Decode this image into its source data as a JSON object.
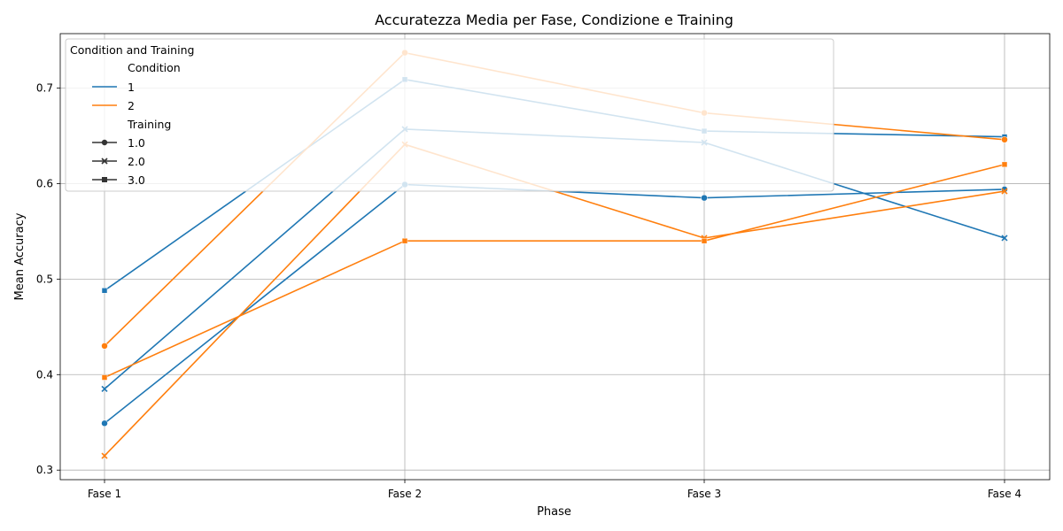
{
  "chart_data": {
    "type": "line",
    "title": "Accuratezza Media per Fase, Condizione e Training",
    "xlabel": "Phase",
    "ylabel": "Mean Accuracy",
    "categories": [
      "Fase 1",
      "Fase 2",
      "Fase 3",
      "Fase 4"
    ],
    "ylim": [
      0.29,
      0.757
    ],
    "yticks": [
      "0.3",
      "0.4",
      "0.5",
      "0.6",
      "0.7"
    ],
    "grid": true,
    "legend": {
      "placement": "top-left",
      "title": "Condition and Training",
      "condition_header": "Condition",
      "conditions": [
        {
          "label": "1",
          "color": "#1f77b4"
        },
        {
          "label": "2",
          "color": "#ff7f0e"
        }
      ],
      "training_header": "Training",
      "trainings": [
        {
          "label": "1.0",
          "marker": "circle"
        },
        {
          "label": "2.0",
          "marker": "x"
        },
        {
          "label": "3.0",
          "marker": "square"
        }
      ]
    },
    "series": [
      {
        "condition": "1",
        "training": "1.0",
        "color": "#1f77b4",
        "marker": "circle",
        "values": [
          0.349,
          0.599,
          0.585,
          0.594
        ]
      },
      {
        "condition": "1",
        "training": "2.0",
        "color": "#1f77b4",
        "marker": "x",
        "values": [
          0.385,
          0.657,
          0.643,
          0.543
        ]
      },
      {
        "condition": "1",
        "training": "3.0",
        "color": "#1f77b4",
        "marker": "square",
        "values": [
          0.488,
          0.709,
          0.655,
          0.649
        ]
      },
      {
        "condition": "2",
        "training": "1.0",
        "color": "#ff7f0e",
        "marker": "circle",
        "values": [
          0.43,
          0.737,
          0.674,
          0.646
        ]
      },
      {
        "condition": "2",
        "training": "2.0",
        "color": "#ff7f0e",
        "marker": "x",
        "values": [
          0.315,
          0.641,
          0.543,
          0.592
        ]
      },
      {
        "condition": "2",
        "training": "3.0",
        "color": "#ff7f0e",
        "marker": "square",
        "values": [
          0.397,
          0.54,
          0.54,
          0.62
        ]
      }
    ]
  }
}
